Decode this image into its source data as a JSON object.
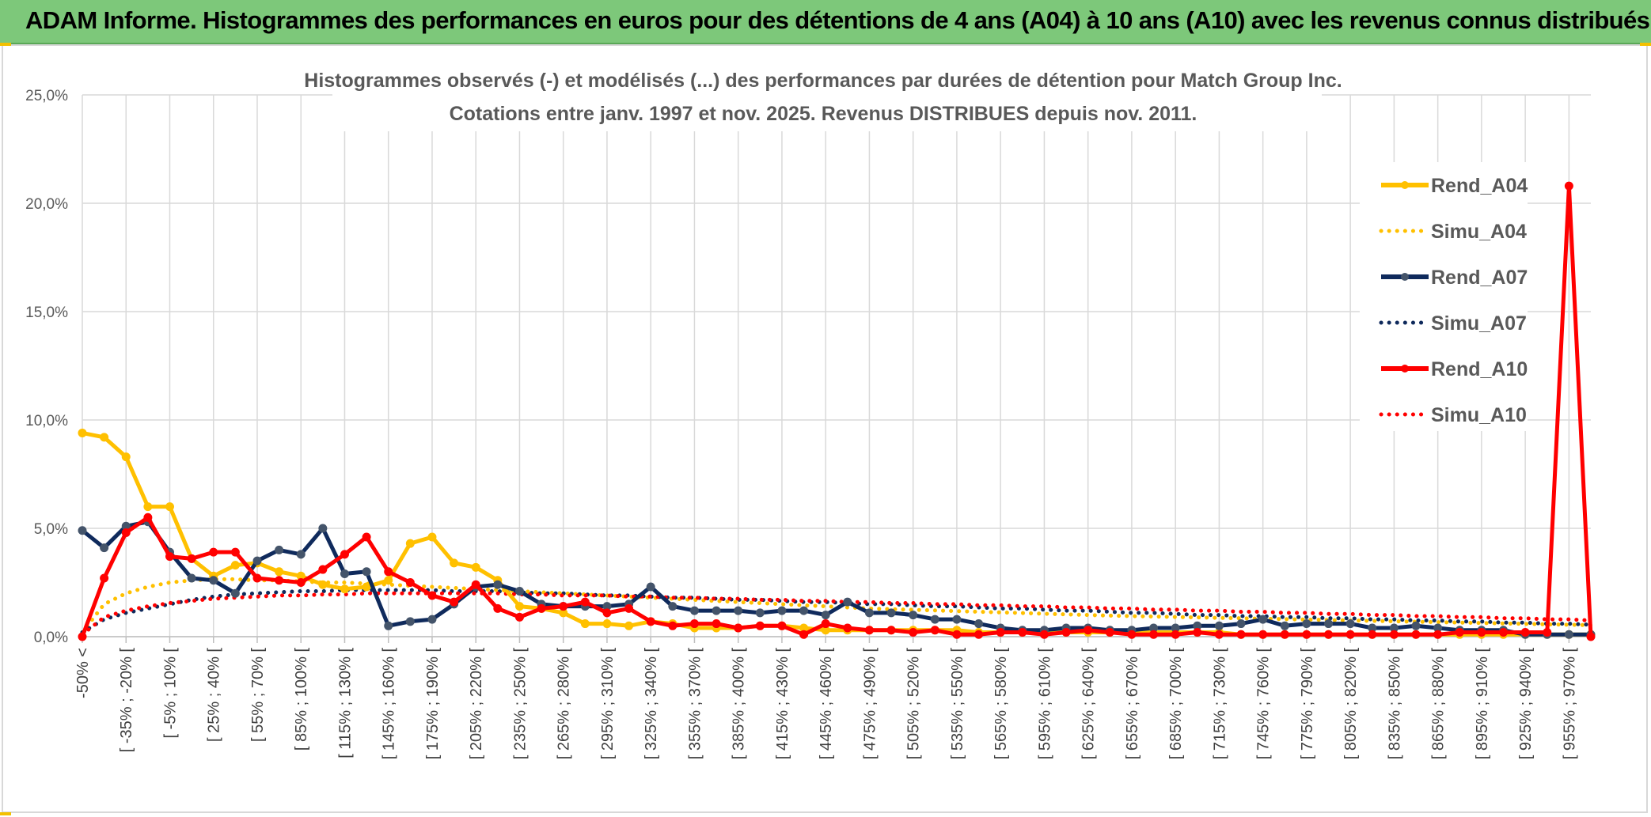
{
  "banner": {
    "title": "ADAM Informe. Histogrammes des performances en euros pour des détentions de 4 ans (A04) à 10 ans (A10) avec les revenus connus distribués"
  },
  "colors": {
    "banner_bg": "#7dc87a",
    "A04": "#ffc000",
    "A07": "#0f2a5c",
    "A07_marker": "#44546a",
    "A10": "#ff0000",
    "grid": "#d9d9d9"
  },
  "chart_data": {
    "type": "line",
    "title": [
      "Histogrammes observés (-) et modélisés (...) des performances par durées de détention pour Match Group Inc.",
      "Cotations entre janv. 1997 et nov. 2025. Revenus DISTRIBUES depuis nov. 2011."
    ],
    "xlabel": "",
    "ylabel": "",
    "ylim": [
      0,
      25
    ],
    "yticks": [
      0,
      5,
      10,
      15,
      20,
      25
    ],
    "ytick_labels": [
      "0,0%",
      "5,0%",
      "10,0%",
      "15,0%",
      "20,0%",
      "25,0%"
    ],
    "grid": true,
    "legend_position": "right",
    "category_labels": [
      "-50% <",
      "[ -35% ; -20% [",
      "[ -5% ; 10% [",
      "[ 25% ; 40% [",
      "[ 55% ; 70% [",
      "[ 85% ; 100% [",
      "[ 115% ; 130% [",
      "[ 145% ; 160% [",
      "[ 175% ; 190% [",
      "[ 205% ; 220% [",
      "[ 235% ; 250% [",
      "[ 265% ; 280% [",
      "[ 295% ; 310% [",
      "[ 325% ; 340% [",
      "[ 355% ; 370% [",
      "[ 385% ; 400% [",
      "[ 415% ; 430% [",
      "[ 445% ; 460% [",
      "[ 475% ; 490% [",
      "[ 505% ; 520% [",
      "[ 535% ; 550% [",
      "[ 565% ; 580% [",
      "[ 595% ; 610% [",
      "[ 625% ; 640% [",
      "[ 655% ; 670% [",
      "[ 685% ; 700% [",
      "[ 715% ; 730% [",
      "[ 745% ; 760% [",
      "[ 775% ; 790% [",
      "[ 805% ; 820% [",
      "[ 835% ; 850% [",
      "[ 865% ; 880% [",
      "[ 895% ; 910% [",
      "[ 925% ; 940% [",
      "[ 955% ; 970% ["
    ],
    "n_bins": 70,
    "series": [
      {
        "name": "Rend_A04",
        "style": "solid",
        "color": "#ffc000",
        "marker": "#ffc000",
        "values": [
          9.4,
          9.2,
          8.3,
          6.0,
          6.0,
          3.6,
          2.8,
          3.3,
          3.4,
          3.0,
          2.8,
          2.4,
          2.2,
          2.3,
          2.6,
          4.3,
          4.6,
          3.4,
          3.2,
          2.6,
          1.4,
          1.3,
          1.1,
          0.6,
          0.6,
          0.5,
          0.7,
          0.6,
          0.4,
          0.4,
          0.4,
          0.5,
          0.5,
          0.4,
          0.3,
          0.3,
          0.3,
          0.3,
          0.3,
          0.3,
          0.3,
          0.2,
          0.2,
          0.2,
          0.2,
          0.2,
          0.2,
          0.2,
          0.2,
          0.2,
          0.2,
          0.2,
          0.2,
          0.1,
          0.1,
          0.1,
          0.1,
          0.1,
          0.1,
          0.1,
          0.1,
          0.1,
          0.1,
          0.1,
          0.1,
          0.1,
          0.1,
          0.1,
          0.1,
          0.1
        ]
      },
      {
        "name": "Simu_A04",
        "style": "dotted",
        "color": "#ffc000",
        "values": [
          0.2,
          1.5,
          2.0,
          2.3,
          2.5,
          2.6,
          2.65,
          2.65,
          2.6,
          2.6,
          2.55,
          2.5,
          2.5,
          2.45,
          2.4,
          2.35,
          2.3,
          2.25,
          2.2,
          2.15,
          2.1,
          2.05,
          2.0,
          1.95,
          1.9,
          1.85,
          1.8,
          1.75,
          1.7,
          1.65,
          1.6,
          1.55,
          1.5,
          1.45,
          1.4,
          1.35,
          1.3,
          1.27,
          1.24,
          1.21,
          1.18,
          1.15,
          1.12,
          1.09,
          1.06,
          1.03,
          1.0,
          0.97,
          0.95,
          0.93,
          0.91,
          0.89,
          0.87,
          0.85,
          0.83,
          0.81,
          0.79,
          0.77,
          0.75,
          0.73,
          0.71,
          0.69,
          0.67,
          0.65,
          0.63,
          0.61,
          0.59,
          0.57,
          0.55,
          0.53
        ]
      },
      {
        "name": "Rend_A07",
        "style": "solid",
        "color": "#0f2a5c",
        "marker": "#44546a",
        "values": [
          4.9,
          4.1,
          5.1,
          5.3,
          3.9,
          2.7,
          2.6,
          2.0,
          3.5,
          4.0,
          3.8,
          5.0,
          2.9,
          3.0,
          0.5,
          0.7,
          0.8,
          1.5,
          2.3,
          2.4,
          2.1,
          1.5,
          1.4,
          1.4,
          1.4,
          1.5,
          2.3,
          1.4,
          1.2,
          1.2,
          1.2,
          1.1,
          1.2,
          1.2,
          1.0,
          1.6,
          1.1,
          1.1,
          1.0,
          0.8,
          0.8,
          0.6,
          0.4,
          0.3,
          0.3,
          0.4,
          0.4,
          0.3,
          0.3,
          0.4,
          0.4,
          0.5,
          0.5,
          0.6,
          0.8,
          0.5,
          0.6,
          0.6,
          0.6,
          0.4,
          0.4,
          0.5,
          0.4,
          0.3,
          0.3,
          0.3,
          0.1,
          0.1,
          0.1,
          0.1
        ]
      },
      {
        "name": "Simu_A07",
        "style": "dotted",
        "color": "#0f2a5c",
        "values": [
          0.2,
          0.8,
          1.1,
          1.3,
          1.5,
          1.7,
          1.85,
          1.95,
          2.0,
          2.05,
          2.1,
          2.1,
          2.15,
          2.15,
          2.15,
          2.15,
          2.15,
          2.1,
          2.1,
          2.1,
          2.05,
          2.0,
          2.0,
          1.95,
          1.9,
          1.9,
          1.85,
          1.8,
          1.8,
          1.75,
          1.7,
          1.7,
          1.65,
          1.6,
          1.6,
          1.55,
          1.5,
          1.5,
          1.45,
          1.4,
          1.4,
          1.35,
          1.3,
          1.3,
          1.25,
          1.2,
          1.2,
          1.15,
          1.1,
          1.1,
          1.05,
          1.0,
          1.0,
          0.95,
          0.95,
          0.9,
          0.9,
          0.85,
          0.85,
          0.8,
          0.8,
          0.75,
          0.75,
          0.7,
          0.7,
          0.65,
          0.65,
          0.6,
          0.6,
          0.55
        ]
      },
      {
        "name": "Rend_A10",
        "style": "solid",
        "color": "#ff0000",
        "marker": "#ff0000",
        "values": [
          0.0,
          2.7,
          4.8,
          5.5,
          3.7,
          3.6,
          3.9,
          3.9,
          2.7,
          2.6,
          2.5,
          3.1,
          3.8,
          4.6,
          3.0,
          2.5,
          1.9,
          1.6,
          2.4,
          1.3,
          0.9,
          1.3,
          1.4,
          1.6,
          1.1,
          1.3,
          0.7,
          0.5,
          0.6,
          0.6,
          0.4,
          0.5,
          0.5,
          0.1,
          0.6,
          0.4,
          0.3,
          0.3,
          0.2,
          0.3,
          0.1,
          0.1,
          0.2,
          0.2,
          0.1,
          0.2,
          0.3,
          0.2,
          0.1,
          0.1,
          0.1,
          0.2,
          0.1,
          0.1,
          0.1,
          0.1,
          0.1,
          0.1,
          0.1,
          0.1,
          0.1,
          0.1,
          0.1,
          0.2,
          0.2,
          0.2,
          0.2,
          0.2,
          20.8,
          0.0
        ]
      },
      {
        "name": "Simu_A10",
        "style": "dotted",
        "color": "#ff0000",
        "values": [
          0.1,
          0.9,
          1.2,
          1.4,
          1.55,
          1.65,
          1.75,
          1.8,
          1.85,
          1.9,
          1.9,
          1.95,
          1.95,
          2.0,
          2.0,
          2.0,
          2.0,
          2.0,
          2.0,
          2.0,
          1.95,
          1.95,
          1.9,
          1.9,
          1.9,
          1.85,
          1.85,
          1.8,
          1.8,
          1.75,
          1.75,
          1.7,
          1.7,
          1.65,
          1.65,
          1.6,
          1.6,
          1.55,
          1.55,
          1.5,
          1.5,
          1.45,
          1.45,
          1.4,
          1.4,
          1.35,
          1.35,
          1.3,
          1.3,
          1.25,
          1.25,
          1.2,
          1.2,
          1.15,
          1.15,
          1.1,
          1.1,
          1.05,
          1.05,
          1.0,
          1.0,
          0.95,
          0.95,
          0.9,
          0.9,
          0.85,
          0.85,
          0.8,
          0.8,
          0.75
        ]
      }
    ]
  }
}
